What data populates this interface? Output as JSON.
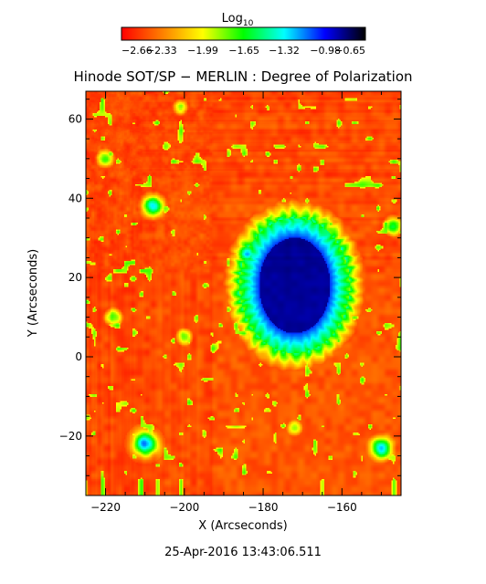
{
  "chart_data": {
    "type": "heatmap",
    "title": "Hinode SOT/SP − MERLIN : Degree of Polarization",
    "xlabel": "X (Arcseconds)",
    "ylabel": "Y (Arcseconds)",
    "timestamp": "25-Apr-2016 13:43:06.511",
    "xlim": [
      -225,
      -145
    ],
    "ylim": [
      -35,
      67
    ],
    "x_ticks": [
      -220,
      -200,
      -180,
      -160
    ],
    "x_tick_labels": [
      "−220",
      "−200",
      "−180",
      "−160"
    ],
    "y_ticks": [
      -20,
      0,
      20,
      40,
      60
    ],
    "y_tick_labels": [
      "−20",
      "0",
      "20",
      "40",
      "60"
    ],
    "colorbar": {
      "label_main": "Log",
      "label_sub": "10",
      "range": [
        -2.66,
        -0.65
      ],
      "ticks": [
        -2.66,
        -2.33,
        -1.99,
        -1.65,
        -1.32,
        -0.98,
        -0.65
      ],
      "tick_labels": [
        "−2.66",
        "−2.33",
        "−1.99",
        "−1.65",
        "−1.32",
        "−0.98",
        "−0.65"
      ],
      "colors": [
        "#ff0000",
        "#ff7f00",
        "#ffff00",
        "#00ff00",
        "#00ffff",
        "#0000ff",
        "#000000"
      ]
    },
    "features": {
      "sunspot_umbra_center": [
        -172,
        18
      ],
      "sunspot_umbra_radius": [
        9,
        12
      ],
      "umbra_value": -0.8,
      "penumbra_outer_radius": [
        14,
        17
      ],
      "quiet_sun_value": -2.6,
      "plage_patches": [
        {
          "center": [
            -208,
            38
          ],
          "value": -1.3
        },
        {
          "center": [
            -184,
            26
          ],
          "value": -1.3
        },
        {
          "center": [
            -210,
            -22
          ],
          "value": -1.1
        },
        {
          "center": [
            -150,
            -23
          ],
          "value": -1.3
        },
        {
          "center": [
            -218,
            10
          ],
          "value": -1.7
        },
        {
          "center": [
            -200,
            5
          ],
          "value": -1.8
        },
        {
          "center": [
            -172,
            -18
          ],
          "value": -1.9
        },
        {
          "center": [
            -147,
            33
          ],
          "value": -1.6
        },
        {
          "center": [
            -220,
            50
          ],
          "value": -1.7
        },
        {
          "center": [
            -201,
            63
          ],
          "value": -1.9
        }
      ]
    }
  }
}
